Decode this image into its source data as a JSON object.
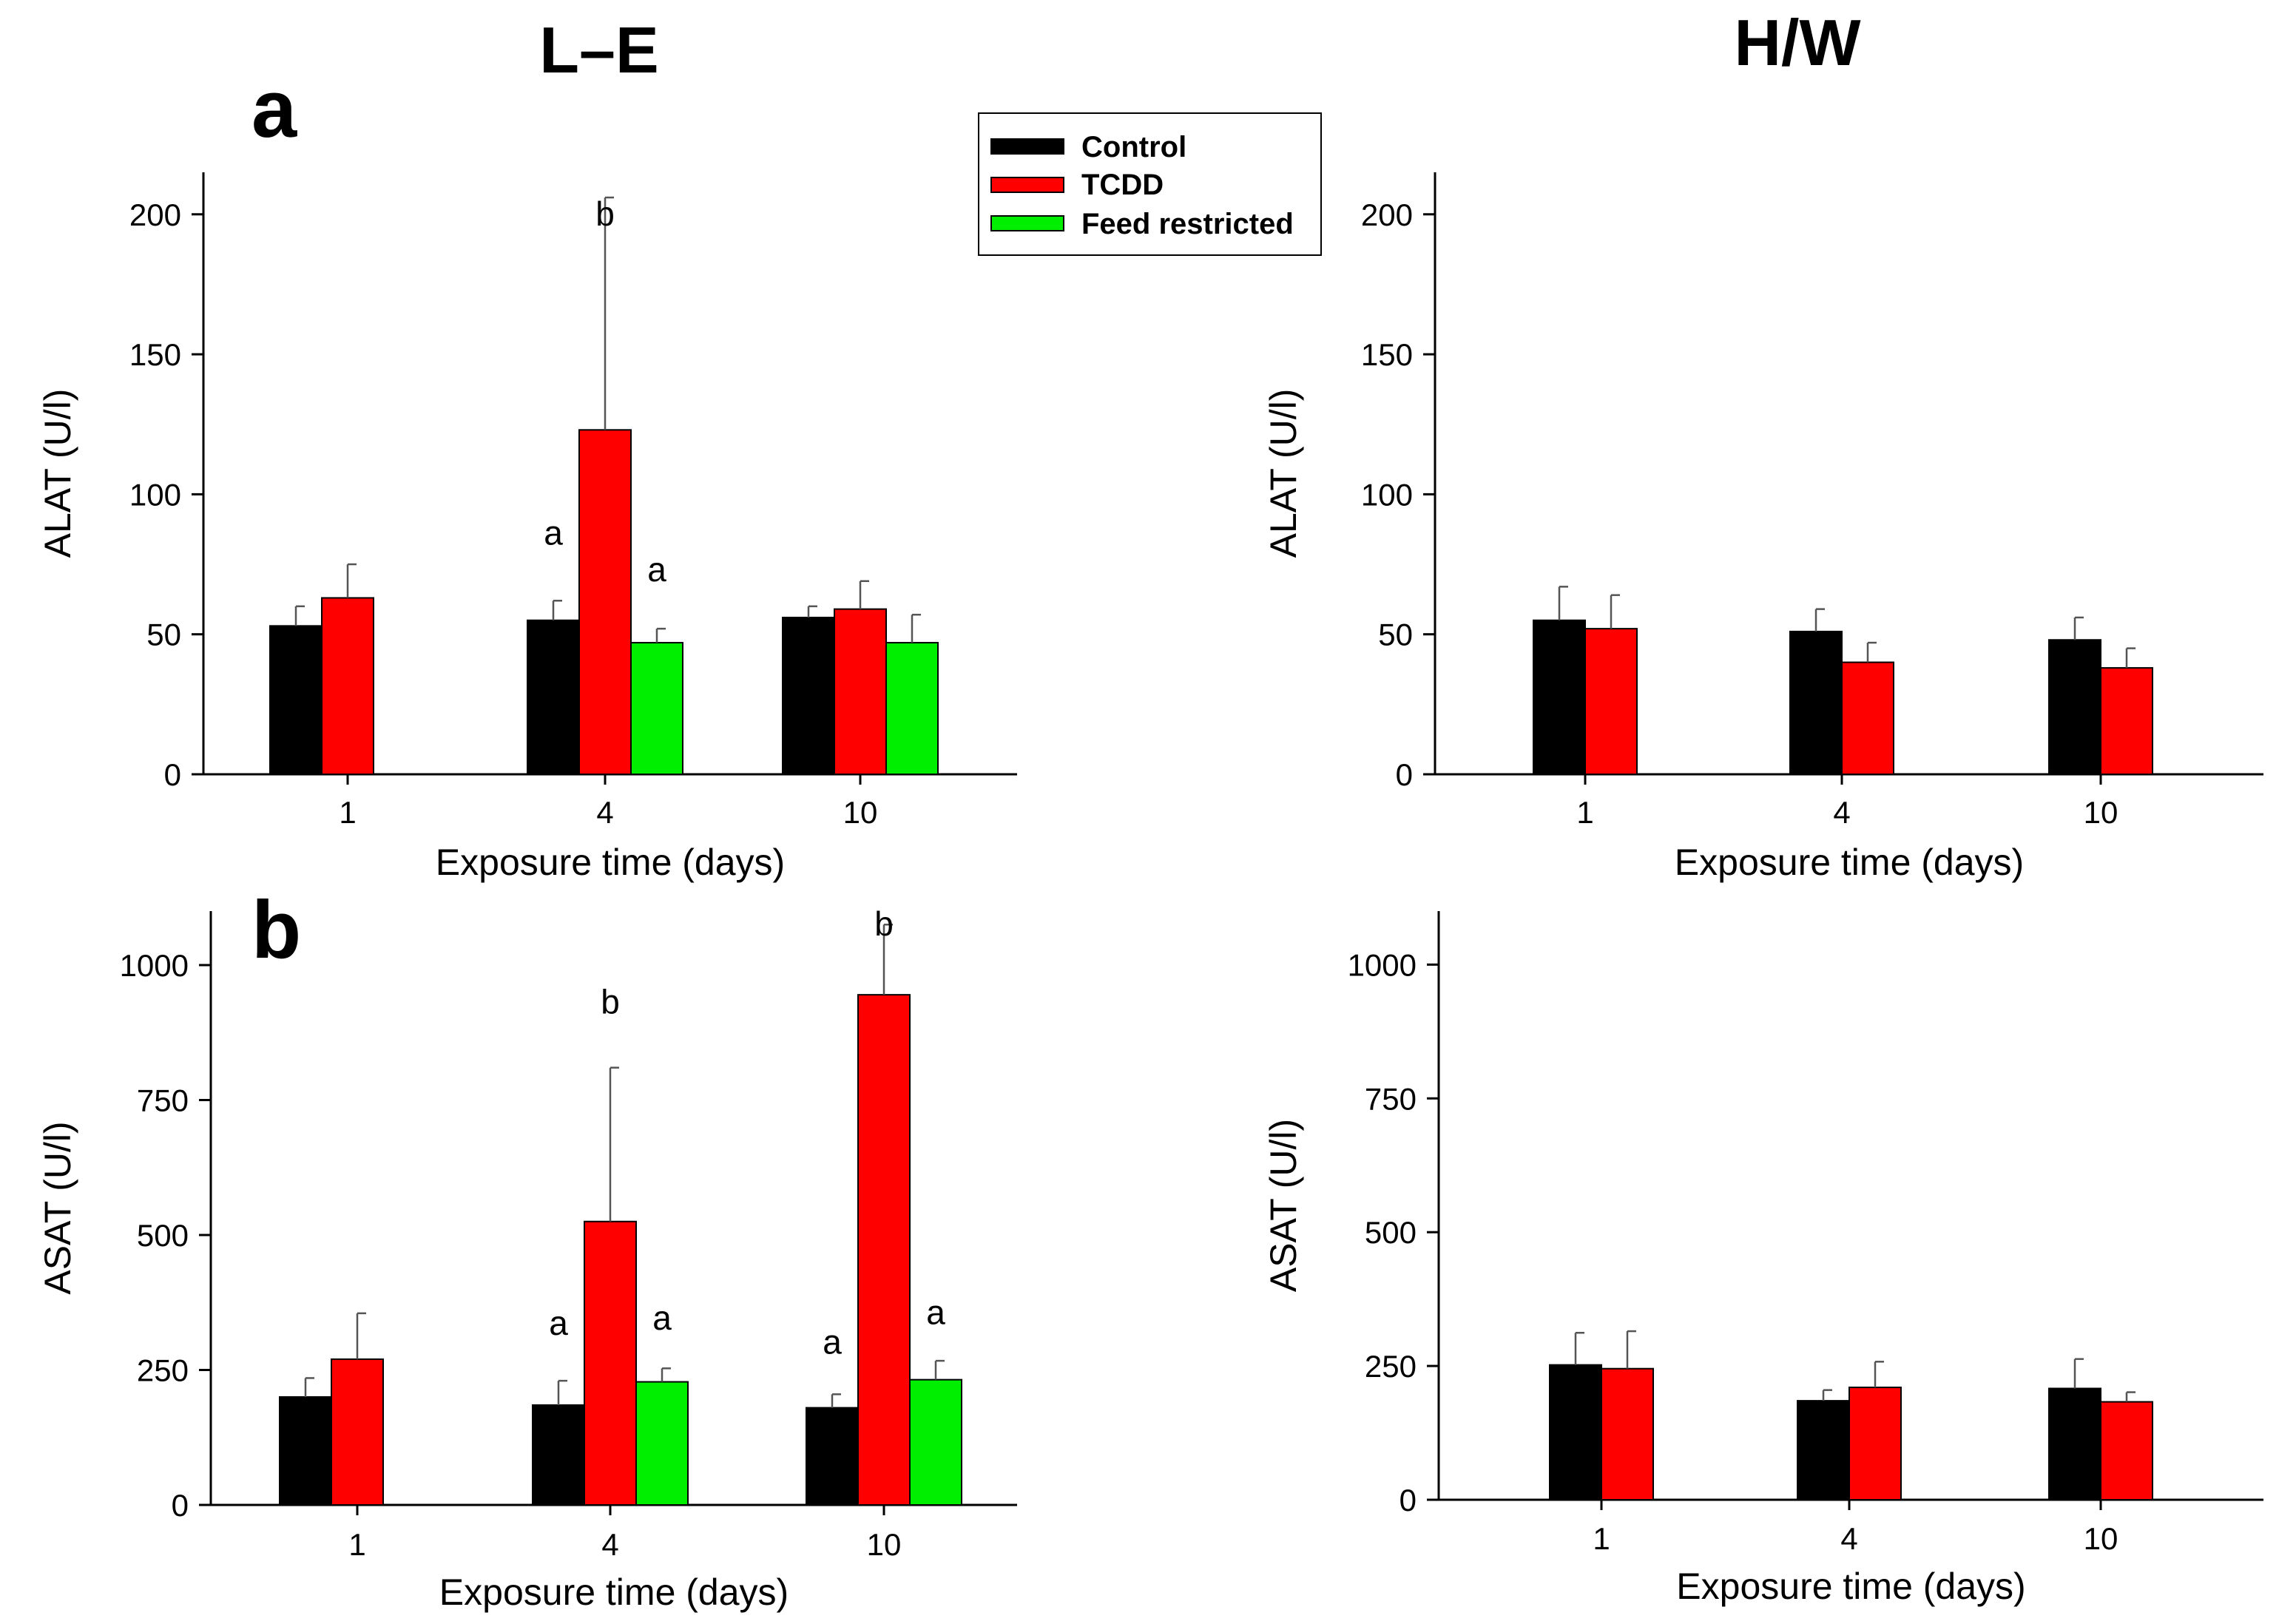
{
  "figure": {
    "group_titles": [
      "L–E",
      "H/W"
    ],
    "panel_letters": [
      "a",
      "b"
    ]
  },
  "legend": {
    "entries": [
      {
        "label": "Control",
        "color": "#000000"
      },
      {
        "label": "TCDD",
        "color": "#ff0000"
      },
      {
        "label": "Feed restricted",
        "color": "#00ee00"
      }
    ]
  },
  "chart_data": [
    {
      "id": "LE_ALAT",
      "type": "bar",
      "group": "L–E",
      "panel": "a",
      "xlabel": "Exposure time (days)",
      "ylabel": "ALAT (U/l)",
      "categories": [
        "1",
        "4",
        "10"
      ],
      "ylim": [
        0,
        215
      ],
      "yticks": [
        0,
        50,
        100,
        150,
        200
      ],
      "series": [
        {
          "name": "Control",
          "color": "#000000",
          "values": [
            53,
            55,
            56
          ],
          "errors": [
            7,
            7,
            4
          ]
        },
        {
          "name": "TCDD",
          "color": "#ff0000",
          "values": [
            63,
            123,
            59
          ],
          "errors": [
            12,
            83,
            10
          ]
        },
        {
          "name": "Feed restricted",
          "color": "#00ee00",
          "values": [
            null,
            47,
            47
          ],
          "errors": [
            null,
            5,
            10
          ]
        }
      ],
      "annotations": [
        {
          "category": "4",
          "series": "Control",
          "text": "a",
          "value": 82
        },
        {
          "category": "4",
          "series": "TCDD",
          "text": "b",
          "value": 196
        },
        {
          "category": "4",
          "series": "Feed restricted",
          "text": "a",
          "value": 69
        }
      ]
    },
    {
      "id": "HW_ALAT",
      "type": "bar",
      "group": "H/W",
      "panel": "",
      "xlabel": "Exposure time (days)",
      "ylabel": "ALAT (U/l)",
      "categories": [
        "1",
        "4",
        "10"
      ],
      "ylim": [
        0,
        215
      ],
      "yticks": [
        0,
        50,
        100,
        150,
        200
      ],
      "series": [
        {
          "name": "Control",
          "color": "#000000",
          "values": [
            55,
            51,
            48
          ],
          "errors": [
            12,
            8,
            8
          ]
        },
        {
          "name": "TCDD",
          "color": "#ff0000",
          "values": [
            52,
            40,
            38
          ],
          "errors": [
            12,
            7,
            7
          ]
        }
      ],
      "annotations": []
    },
    {
      "id": "LE_ASAT",
      "type": "bar",
      "group": "L–E",
      "panel": "b",
      "xlabel": "Exposure time (days)",
      "ylabel": "ASAT (U/l)",
      "categories": [
        "1",
        "4",
        "10"
      ],
      "ylim": [
        0,
        1100
      ],
      "yticks": [
        0,
        250,
        500,
        750,
        1000
      ],
      "series": [
        {
          "name": "Control",
          "color": "#000000",
          "values": [
            200,
            185,
            180
          ],
          "errors": [
            35,
            45,
            25
          ]
        },
        {
          "name": "TCDD",
          "color": "#ff0000",
          "values": [
            270,
            525,
            945
          ],
          "errors": [
            85,
            285,
            130
          ]
        },
        {
          "name": "Feed restricted",
          "color": "#00ee00",
          "values": [
            null,
            228,
            232
          ],
          "errors": [
            null,
            25,
            35
          ]
        }
      ],
      "annotations": [
        {
          "category": "4",
          "series": "Control",
          "text": "a",
          "value": 315
        },
        {
          "category": "4",
          "series": "TCDD",
          "text": "b",
          "value": 910
        },
        {
          "category": "4",
          "series": "Feed restricted",
          "text": "a",
          "value": 325
        },
        {
          "category": "10",
          "series": "Control",
          "text": "a",
          "value": 280
        },
        {
          "category": "10",
          "series": "TCDD",
          "text": "b",
          "value": 1055
        },
        {
          "category": "10",
          "series": "Feed restricted",
          "text": "a",
          "value": 335
        }
      ]
    },
    {
      "id": "HW_ASAT",
      "type": "bar",
      "group": "H/W",
      "panel": "",
      "xlabel": "Exposure time (days)",
      "ylabel": "ASAT (U/l)",
      "categories": [
        "1",
        "4",
        "10"
      ],
      "ylim": [
        0,
        1100
      ],
      "yticks": [
        0,
        250,
        500,
        750,
        1000
      ],
      "series": [
        {
          "name": "Control",
          "color": "#000000",
          "values": [
            252,
            185,
            208
          ],
          "errors": [
            60,
            20,
            55
          ]
        },
        {
          "name": "TCDD",
          "color": "#ff0000",
          "values": [
            245,
            210,
            183
          ],
          "errors": [
            70,
            48,
            18
          ]
        }
      ],
      "annotations": []
    }
  ]
}
